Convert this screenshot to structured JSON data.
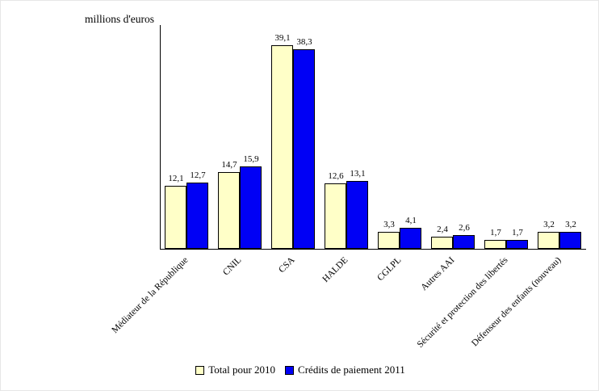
{
  "chart_data": {
    "type": "bar",
    "title": "",
    "xlabel": "",
    "ylabel": "millions d'euros",
    "ylim": [
      0,
      43
    ],
    "grid": false,
    "legend_position": "bottom",
    "decimal_separator": ",",
    "categories": [
      "Médiateur de la République",
      "CNIL",
      "CSA",
      "HALDE",
      "CGLPL",
      "Autres AAI",
      "Sécurité et protection des libertés",
      "Défenseur des enfants (nouveau)"
    ],
    "series": [
      {
        "name": "Total pour 2010",
        "color": "#FFFFC8",
        "values": [
          12.1,
          14.7,
          39.1,
          12.6,
          3.3,
          2.4,
          1.7,
          3.2
        ]
      },
      {
        "name": "Crédits de paiement 2011",
        "color": "#0000F5",
        "values": [
          12.7,
          15.9,
          38.3,
          13.1,
          4.1,
          2.6,
          1.7,
          3.2
        ]
      }
    ]
  }
}
